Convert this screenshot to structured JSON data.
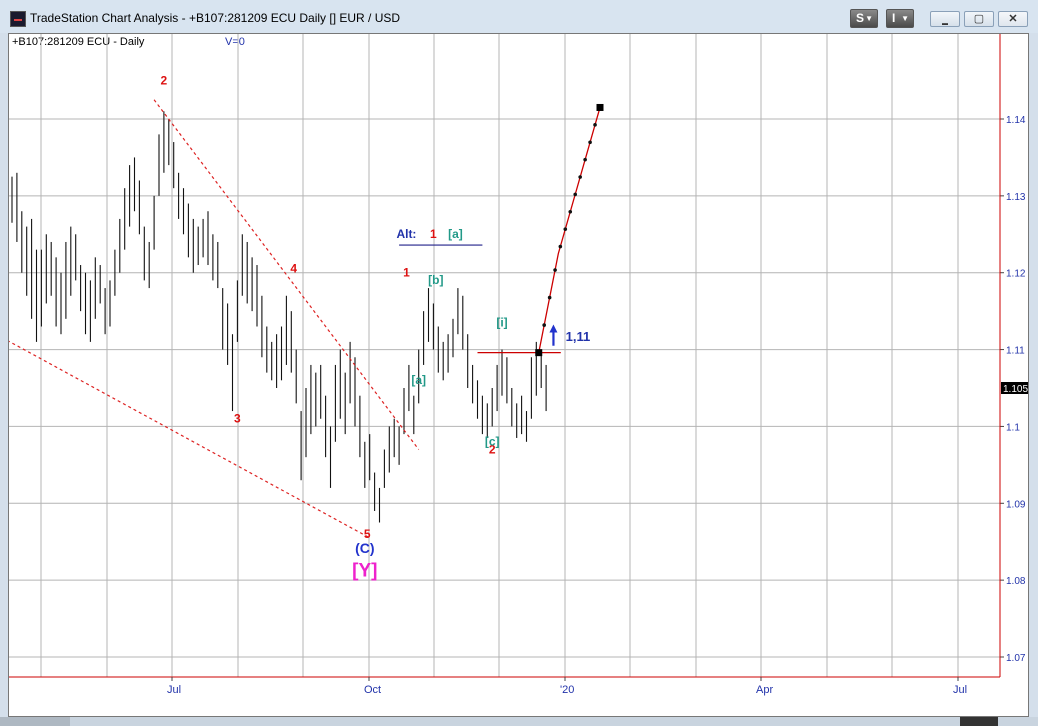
{
  "window": {
    "title": "TradeStation Chart Analysis - +B107:281209 ECU Daily [] EUR / USD",
    "buttons": {
      "s_label": "S",
      "i_label": "I",
      "minimize_symbol": "▬",
      "maximize_symbol": "▢",
      "close_symbol": "✕"
    }
  },
  "chart_header": {
    "symbol_label": "+B107:281209 ECU - Daily",
    "volume_label": "V=0"
  },
  "chart_data": {
    "type": "bar",
    "subtype": "ohlc-price-bars",
    "title": "",
    "grid": true,
    "y_axis": {
      "side": "right",
      "ylim": [
        1.064,
        1.151
      ],
      "ticks": [
        1.07,
        1.08,
        1.09,
        1.1,
        1.11,
        1.12,
        1.13,
        1.14
      ]
    },
    "x_axis": {
      "tick_labels": [
        "Jul",
        "Oct",
        "'20",
        "Apr",
        "Jul"
      ]
    },
    "last_price_label": "1.105",
    "price_bars": [
      [
        0,
        1.1325,
        1.1265
      ],
      [
        1,
        1.133,
        1.124
      ],
      [
        2,
        1.128,
        1.12
      ],
      [
        3,
        1.126,
        1.117
      ],
      [
        4,
        1.127,
        1.114
      ],
      [
        5,
        1.123,
        1.111
      ],
      [
        6,
        1.123,
        1.113
      ],
      [
        7,
        1.125,
        1.116
      ],
      [
        8,
        1.124,
        1.117
      ],
      [
        9,
        1.122,
        1.113
      ],
      [
        10,
        1.12,
        1.112
      ],
      [
        11,
        1.124,
        1.114
      ],
      [
        12,
        1.126,
        1.117
      ],
      [
        13,
        1.125,
        1.119
      ],
      [
        14,
        1.121,
        1.115
      ],
      [
        15,
        1.12,
        1.112
      ],
      [
        16,
        1.119,
        1.111
      ],
      [
        17,
        1.122,
        1.114
      ],
      [
        18,
        1.121,
        1.116
      ],
      [
        19,
        1.118,
        1.112
      ],
      [
        20,
        1.119,
        1.113
      ],
      [
        21,
        1.123,
        1.117
      ],
      [
        22,
        1.127,
        1.12
      ],
      [
        23,
        1.131,
        1.123
      ],
      [
        24,
        1.134,
        1.126
      ],
      [
        25,
        1.135,
        1.128
      ],
      [
        26,
        1.132,
        1.125
      ],
      [
        27,
        1.126,
        1.119
      ],
      [
        28,
        1.124,
        1.118
      ],
      [
        29,
        1.13,
        1.123
      ],
      [
        30,
        1.138,
        1.13
      ],
      [
        31,
        1.141,
        1.133
      ],
      [
        32,
        1.14,
        1.134
      ],
      [
        33,
        1.137,
        1.131
      ],
      [
        34,
        1.133,
        1.127
      ],
      [
        35,
        1.131,
        1.125
      ],
      [
        36,
        1.129,
        1.122
      ],
      [
        37,
        1.127,
        1.12
      ],
      [
        38,
        1.126,
        1.121
      ],
      [
        39,
        1.127,
        1.122
      ],
      [
        40,
        1.128,
        1.121
      ],
      [
        41,
        1.125,
        1.119
      ],
      [
        42,
        1.124,
        1.118
      ],
      [
        43,
        1.118,
        1.11
      ],
      [
        44,
        1.116,
        1.108
      ],
      [
        45,
        1.112,
        1.102
      ],
      [
        46,
        1.119,
        1.111
      ],
      [
        47,
        1.125,
        1.117
      ],
      [
        48,
        1.124,
        1.116
      ],
      [
        49,
        1.122,
        1.115
      ],
      [
        50,
        1.121,
        1.113
      ],
      [
        51,
        1.117,
        1.109
      ],
      [
        52,
        1.113,
        1.107
      ],
      [
        53,
        1.111,
        1.106
      ],
      [
        54,
        1.112,
        1.105
      ],
      [
        55,
        1.113,
        1.106
      ],
      [
        56,
        1.117,
        1.108
      ],
      [
        57,
        1.115,
        1.107
      ],
      [
        58,
        1.11,
        1.103
      ],
      [
        59,
        1.102,
        1.093
      ],
      [
        60,
        1.105,
        1.096
      ],
      [
        61,
        1.108,
        1.099
      ],
      [
        62,
        1.107,
        1.1
      ],
      [
        63,
        1.108,
        1.101
      ],
      [
        64,
        1.104,
        1.096
      ],
      [
        65,
        1.1,
        1.092
      ],
      [
        66,
        1.108,
        1.098
      ],
      [
        67,
        1.11,
        1.101
      ],
      [
        68,
        1.107,
        1.099
      ],
      [
        69,
        1.111,
        1.103
      ],
      [
        70,
        1.109,
        1.1
      ],
      [
        71,
        1.104,
        1.096
      ],
      [
        72,
        1.098,
        1.092
      ],
      [
        73,
        1.099,
        1.093
      ],
      [
        74,
        1.094,
        1.089
      ],
      [
        75,
        1.092,
        1.0875
      ],
      [
        76,
        1.097,
        1.092
      ],
      [
        77,
        1.1,
        1.094
      ],
      [
        78,
        1.101,
        1.096
      ],
      [
        79,
        1.1,
        1.095
      ],
      [
        80,
        1.105,
        1.099
      ],
      [
        81,
        1.108,
        1.102
      ],
      [
        82,
        1.104,
        1.099
      ],
      [
        83,
        1.11,
        1.103
      ],
      [
        84,
        1.115,
        1.108
      ],
      [
        85,
        1.118,
        1.111
      ],
      [
        86,
        1.116,
        1.11
      ],
      [
        87,
        1.113,
        1.107
      ],
      [
        88,
        1.111,
        1.106
      ],
      [
        89,
        1.112,
        1.107
      ],
      [
        90,
        1.114,
        1.109
      ],
      [
        91,
        1.118,
        1.112
      ],
      [
        92,
        1.117,
        1.11
      ],
      [
        93,
        1.112,
        1.105
      ],
      [
        94,
        1.108,
        1.103
      ],
      [
        95,
        1.106,
        1.101
      ],
      [
        96,
        1.104,
        1.099
      ],
      [
        97,
        1.103,
        1.0985
      ],
      [
        98,
        1.105,
        1.1
      ],
      [
        99,
        1.108,
        1.102
      ],
      [
        100,
        1.11,
        1.104
      ],
      [
        101,
        1.109,
        1.103
      ],
      [
        102,
        1.105,
        1.1
      ],
      [
        103,
        1.103,
        1.0985
      ],
      [
        104,
        1.104,
        1.099
      ],
      [
        105,
        1.102,
        1.098
      ],
      [
        106,
        1.109,
        1.101
      ],
      [
        107,
        1.111,
        1.104
      ],
      [
        108,
        1.11,
        1.105
      ],
      [
        109,
        1.108,
        1.102
      ]
    ],
    "trend_lines": [
      {
        "name": "upper-wedge-line",
        "from": [
          29,
          1.1425
        ],
        "to": [
          83,
          1.097
        ],
        "color": "#dd2222",
        "style": "dashed"
      },
      {
        "name": "lower-wedge-line",
        "from": [
          -1,
          1.1112
        ],
        "to": [
          73,
          1.0855
        ],
        "color": "#dd2222",
        "style": "dashed"
      },
      {
        "name": "resistance-line",
        "from": [
          95,
          1.1096
        ],
        "to": [
          112,
          1.1096
        ],
        "color": "#cc0000",
        "style": "solid"
      },
      {
        "name": "alt-underline",
        "from": [
          79,
          1.1236
        ],
        "to": [
          96,
          1.1236
        ],
        "color": "#22228a",
        "style": "solid"
      }
    ],
    "projection": {
      "points": [
        [
          107.5,
          1.1096
        ],
        [
          111.5,
          1.1225
        ],
        [
          120,
          1.1415
        ]
      ],
      "color": "#cc0000"
    },
    "labels": [
      {
        "text": "2",
        "x": 31,
        "y": 1.1445,
        "color": "#dd1111"
      },
      {
        "text": "3",
        "x": 46,
        "y": 1.1005,
        "color": "#dd1111"
      },
      {
        "text": "4",
        "x": 57.5,
        "y": 1.12,
        "color": "#dd1111"
      },
      {
        "text": "5",
        "x": 72.5,
        "y": 1.0855,
        "color": "#dd1111"
      },
      {
        "text": "1",
        "x": 80.5,
        "y": 1.1195,
        "color": "#dd1111"
      },
      {
        "text": "2",
        "x": 98,
        "y": 1.0965,
        "color": "#dd1111"
      },
      {
        "text": "1",
        "x": 86,
        "y": 1.1245,
        "color": "#dd1111"
      },
      {
        "text": "[a]",
        "x": 90.5,
        "y": 1.1245,
        "color": "#229988"
      },
      {
        "text": "[b]",
        "x": 86.5,
        "y": 1.1185,
        "color": "#229988"
      },
      {
        "text": "[a]",
        "x": 83,
        "y": 1.1055,
        "color": "#229988"
      },
      {
        "text": "[c]",
        "x": 98,
        "y": 1.0975,
        "color": "#229988"
      },
      {
        "text": "[i]",
        "x": 100,
        "y": 1.113,
        "color": "#229988"
      },
      {
        "text": "Alt:",
        "x": 80.5,
        "y": 1.1245,
        "color": "#2233aa"
      },
      {
        "text": "(C)",
        "x": 72,
        "y": 1.0835,
        "color": "#2233cc"
      },
      {
        "text": "[Y]",
        "x": 72,
        "y": 1.0805,
        "color": "#ee22cc"
      },
      {
        "text": "1,11",
        "x": 115.5,
        "y": 1.1111,
        "color": "#2233aa"
      }
    ],
    "arrow": {
      "x": 110.5,
      "y_from": 1.1105,
      "y_to": 1.113,
      "color": "#2233cc"
    }
  }
}
